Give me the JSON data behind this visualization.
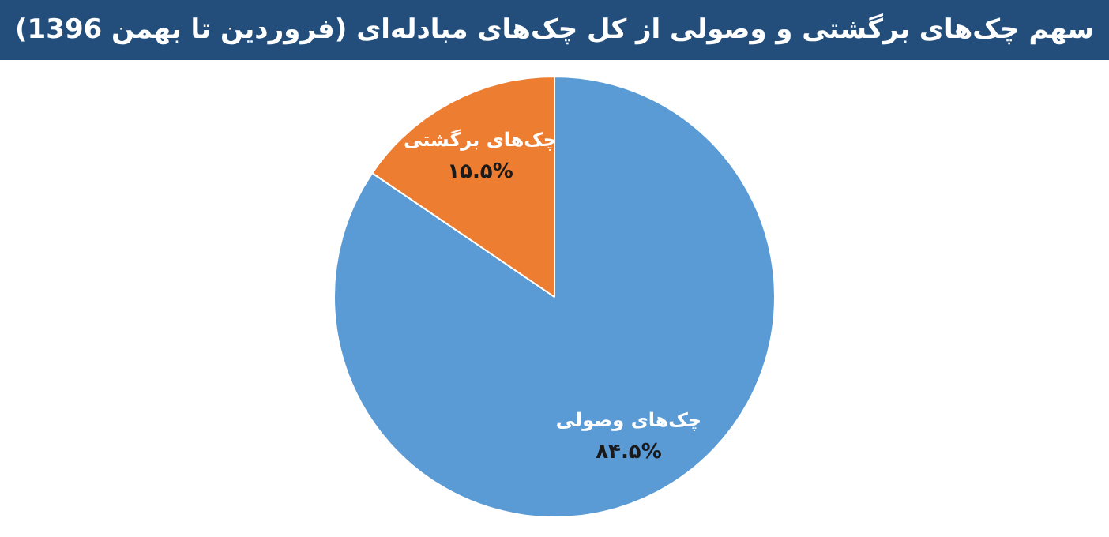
{
  "chart_data": {
    "type": "pie",
    "title": "سهم  چک‌های برگشتی و وصولی از کل چک‌های مبادله‌ای (فروردین تا بهمن 1396)",
    "categories": [
      "چک‌های وصولی",
      "چک‌های برگشتی"
    ],
    "values": [
      84.5,
      15.5
    ],
    "value_labels": [
      "۸۴.۵%",
      "۱۵.۵%"
    ],
    "colors": [
      "#5b9bd5",
      "#ed7d31"
    ],
    "legend": false
  }
}
